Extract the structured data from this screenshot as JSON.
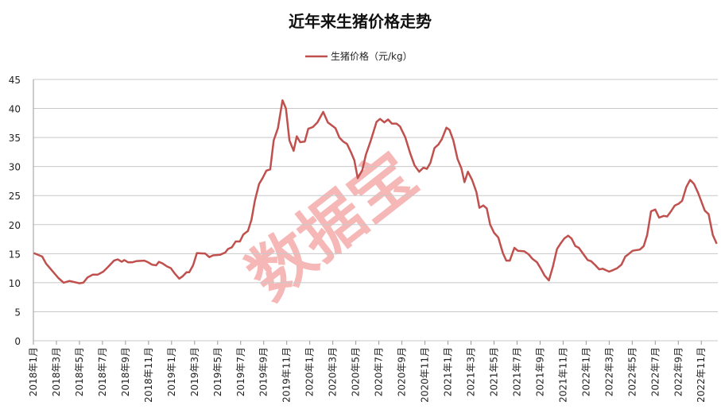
{
  "chart_data": {
    "type": "line",
    "title": "近年来生猪价格走势",
    "legend_position": "top",
    "grid": "horizontal",
    "ylim": [
      0,
      45
    ],
    "yticks": [
      0,
      5,
      10,
      15,
      20,
      25,
      30,
      35,
      40,
      45
    ],
    "xlim": [
      "2018-01-01",
      "2022-12-14"
    ],
    "xtick_labels": [
      "2018年1月",
      "2018年3月",
      "2018年5月",
      "2018年7月",
      "2018年9月",
      "2018年11月",
      "2019年1月",
      "2019年3月",
      "2019年5月",
      "2019年7月",
      "2019年9月",
      "2019年11月",
      "2020年1月",
      "2020年3月",
      "2020年5月",
      "2020年7月",
      "2020年9月",
      "2020年11月",
      "2021年1月",
      "2021年3月",
      "2021年5月",
      "2021年7月",
      "2021年9月",
      "2021年11月",
      "2022年1月",
      "2022年3月",
      "2022年5月",
      "2022年7月",
      "2022年9月",
      "2022年11月"
    ],
    "watermark": "数据宝",
    "series": [
      {
        "name": "生猪价格（元/kg）",
        "color": "#c0504d",
        "points": [
          [
            "2018-01-02",
            15.1
          ],
          [
            "2018-01-24",
            14.5
          ],
          [
            "2018-02-04",
            13.3
          ],
          [
            "2018-02-18",
            12.2
          ],
          [
            "2018-03-06",
            10.8
          ],
          [
            "2018-03-20",
            10.0
          ],
          [
            "2018-04-05",
            10.3
          ],
          [
            "2018-05-01",
            9.9
          ],
          [
            "2018-05-11",
            10.0
          ],
          [
            "2018-05-22",
            10.9
          ],
          [
            "2018-06-06",
            11.4
          ],
          [
            "2018-06-19",
            11.4
          ],
          [
            "2018-07-03",
            11.9
          ],
          [
            "2018-07-17",
            12.8
          ],
          [
            "2018-08-01",
            13.8
          ],
          [
            "2018-08-11",
            14.0
          ],
          [
            "2018-08-21",
            13.6
          ],
          [
            "2018-08-28",
            13.9
          ],
          [
            "2018-09-08",
            13.5
          ],
          [
            "2018-09-18",
            13.5
          ],
          [
            "2018-09-29",
            13.7
          ],
          [
            "2018-10-20",
            13.8
          ],
          [
            "2018-10-30",
            13.5
          ],
          [
            "2018-11-10",
            13.1
          ],
          [
            "2018-11-21",
            13.0
          ],
          [
            "2018-11-28",
            13.6
          ],
          [
            "2018-12-08",
            13.3
          ],
          [
            "2018-12-19",
            12.8
          ],
          [
            "2018-12-29",
            12.5
          ],
          [
            "2019-01-09",
            11.6
          ],
          [
            "2019-01-21",
            10.7
          ],
          [
            "2019-01-30",
            11.1
          ],
          [
            "2019-02-10",
            11.8
          ],
          [
            "2019-02-17",
            11.8
          ],
          [
            "2019-02-27",
            13.0
          ],
          [
            "2019-03-07",
            15.1
          ],
          [
            "2019-03-29",
            15.0
          ],
          [
            "2019-04-09",
            14.4
          ],
          [
            "2019-04-19",
            14.7
          ],
          [
            "2019-05-07",
            14.8
          ],
          [
            "2019-05-21",
            15.2
          ],
          [
            "2019-05-28",
            15.8
          ],
          [
            "2019-06-08",
            16.1
          ],
          [
            "2019-06-18",
            17.1
          ],
          [
            "2019-06-29",
            17.1
          ],
          [
            "2019-07-08",
            18.3
          ],
          [
            "2019-07-20",
            18.9
          ],
          [
            "2019-07-29",
            20.8
          ],
          [
            "2019-08-08",
            24.1
          ],
          [
            "2019-08-19",
            27.0
          ],
          [
            "2019-08-28",
            28.0
          ],
          [
            "2019-09-08",
            29.3
          ],
          [
            "2019-09-18",
            29.5
          ],
          [
            "2019-09-27",
            34.5
          ],
          [
            "2019-10-08",
            36.6
          ],
          [
            "2019-10-20",
            41.4
          ],
          [
            "2019-10-29",
            40.0
          ],
          [
            "2019-11-08",
            34.5
          ],
          [
            "2019-11-19",
            32.7
          ],
          [
            "2019-11-27",
            35.2
          ],
          [
            "2019-12-06",
            34.2
          ],
          [
            "2019-12-18",
            34.3
          ],
          [
            "2019-12-27",
            36.5
          ],
          [
            "2020-01-09",
            36.8
          ],
          [
            "2020-01-21",
            37.6
          ],
          [
            "2020-02-06",
            39.4
          ],
          [
            "2020-02-18",
            37.6
          ],
          [
            "2020-03-08",
            36.6
          ],
          [
            "2020-03-18",
            35.0
          ],
          [
            "2020-03-28",
            34.3
          ],
          [
            "2020-04-08",
            33.9
          ],
          [
            "2020-04-18",
            32.5
          ],
          [
            "2020-04-27",
            31.1
          ],
          [
            "2020-05-06",
            28.0
          ],
          [
            "2020-05-18",
            29.4
          ],
          [
            "2020-05-27",
            32.0
          ],
          [
            "2020-06-10",
            34.5
          ],
          [
            "2020-06-25",
            37.7
          ],
          [
            "2020-07-04",
            38.2
          ],
          [
            "2020-07-15",
            37.6
          ],
          [
            "2020-07-25",
            38.1
          ],
          [
            "2020-08-05",
            37.4
          ],
          [
            "2020-08-17",
            37.4
          ],
          [
            "2020-08-26",
            36.9
          ],
          [
            "2020-09-10",
            35.0
          ],
          [
            "2020-09-23",
            32.2
          ],
          [
            "2020-10-04",
            30.2
          ],
          [
            "2020-10-16",
            29.1
          ],
          [
            "2020-10-27",
            29.8
          ],
          [
            "2020-11-06",
            29.6
          ],
          [
            "2020-11-15",
            30.6
          ],
          [
            "2020-11-26",
            33.2
          ],
          [
            "2020-12-06",
            33.8
          ],
          [
            "2020-12-15",
            34.7
          ],
          [
            "2020-12-27",
            36.7
          ],
          [
            "2021-01-05",
            36.3
          ],
          [
            "2021-01-15",
            34.5
          ],
          [
            "2021-01-26",
            31.3
          ],
          [
            "2021-02-06",
            29.7
          ],
          [
            "2021-02-14",
            27.3
          ],
          [
            "2021-02-23",
            29.1
          ],
          [
            "2021-03-04",
            27.7
          ],
          [
            "2021-03-15",
            25.6
          ],
          [
            "2021-03-23",
            22.9
          ],
          [
            "2021-04-03",
            23.3
          ],
          [
            "2021-04-12",
            22.8
          ],
          [
            "2021-04-21",
            20.0
          ],
          [
            "2021-05-01",
            18.6
          ],
          [
            "2021-05-12",
            17.8
          ],
          [
            "2021-05-24",
            15.1
          ],
          [
            "2021-06-03",
            13.8
          ],
          [
            "2021-06-12",
            13.8
          ],
          [
            "2021-06-24",
            16.0
          ],
          [
            "2021-07-03",
            15.5
          ],
          [
            "2021-07-20",
            15.4
          ],
          [
            "2021-08-01",
            14.9
          ],
          [
            "2021-08-11",
            14.1
          ],
          [
            "2021-08-23",
            13.5
          ],
          [
            "2021-09-03",
            12.4
          ],
          [
            "2021-09-13",
            11.2
          ],
          [
            "2021-09-24",
            10.4
          ],
          [
            "2021-10-04",
            12.7
          ],
          [
            "2021-10-15",
            15.8
          ],
          [
            "2021-10-24",
            16.7
          ],
          [
            "2021-11-04",
            17.6
          ],
          [
            "2021-11-14",
            18.1
          ],
          [
            "2021-11-23",
            17.6
          ],
          [
            "2021-12-03",
            16.3
          ],
          [
            "2021-12-12",
            16.0
          ],
          [
            "2021-12-24",
            14.9
          ],
          [
            "2022-01-05",
            13.9
          ],
          [
            "2022-01-14",
            13.7
          ],
          [
            "2022-01-25",
            13.0
          ],
          [
            "2022-02-05",
            12.3
          ],
          [
            "2022-02-14",
            12.4
          ],
          [
            "2022-03-01",
            11.9
          ],
          [
            "2022-03-12",
            12.2
          ],
          [
            "2022-03-22",
            12.5
          ],
          [
            "2022-04-03",
            13.1
          ],
          [
            "2022-04-13",
            14.5
          ],
          [
            "2022-04-21",
            14.9
          ],
          [
            "2022-05-02",
            15.5
          ],
          [
            "2022-05-21",
            15.7
          ],
          [
            "2022-06-01",
            16.3
          ],
          [
            "2022-06-10",
            18.2
          ],
          [
            "2022-06-20",
            22.3
          ],
          [
            "2022-07-01",
            22.6
          ],
          [
            "2022-07-11",
            21.2
          ],
          [
            "2022-07-23",
            21.5
          ],
          [
            "2022-08-02",
            21.4
          ],
          [
            "2022-08-12",
            22.3
          ],
          [
            "2022-08-22",
            23.3
          ],
          [
            "2022-09-02",
            23.6
          ],
          [
            "2022-09-11",
            24.1
          ],
          [
            "2022-09-22",
            26.5
          ],
          [
            "2022-10-02",
            27.7
          ],
          [
            "2022-10-12",
            27.0
          ],
          [
            "2022-10-23",
            25.4
          ],
          [
            "2022-11-01",
            24.0
          ],
          [
            "2022-11-10",
            22.4
          ],
          [
            "2022-11-20",
            21.8
          ],
          [
            "2022-12-01",
            18.2
          ],
          [
            "2022-12-11",
            16.7
          ]
        ]
      }
    ]
  }
}
